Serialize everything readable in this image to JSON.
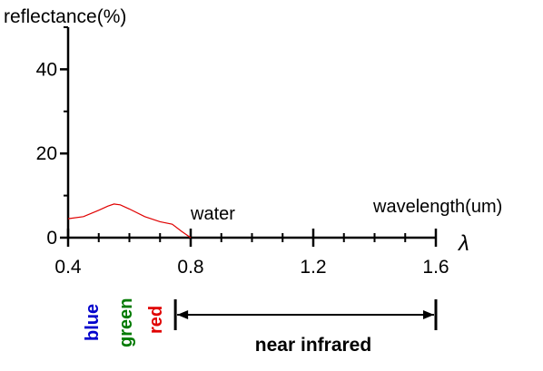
{
  "chart_data": {
    "type": "line",
    "ylabel": "reflectance(%)",
    "xlabel": "wavelength(um)",
    "x_symbol": "λ",
    "xlim": [
      0.4,
      1.6
    ],
    "ylim": [
      0,
      50
    ],
    "x_ticks": [
      0.4,
      0.8,
      1.2,
      1.6
    ],
    "x_tick_labels": [
      "0.4",
      "0.8",
      "1.2",
      "1.6"
    ],
    "y_ticks": [
      0,
      20,
      40
    ],
    "y_tick_labels": [
      "0",
      "20",
      "40"
    ],
    "grid": false,
    "series": [
      {
        "name": "water",
        "color": "#e00000",
        "x": [
          0.4,
          0.45,
          0.5,
          0.53,
          0.55,
          0.57,
          0.6,
          0.65,
          0.7,
          0.74,
          0.77,
          0.8
        ],
        "y": [
          4.5,
          5.0,
          6.5,
          7.5,
          8.0,
          7.8,
          6.8,
          5.0,
          3.8,
          3.2,
          1.5,
          0.0
        ]
      }
    ],
    "annotations": {
      "bands": [
        {
          "label": "blue",
          "color": "#0000cc"
        },
        {
          "label": "green",
          "color": "#007a00"
        },
        {
          "label": "red",
          "color": "#e00000"
        }
      ],
      "range_label": "near infrared",
      "range": [
        0.75,
        1.6
      ]
    }
  }
}
